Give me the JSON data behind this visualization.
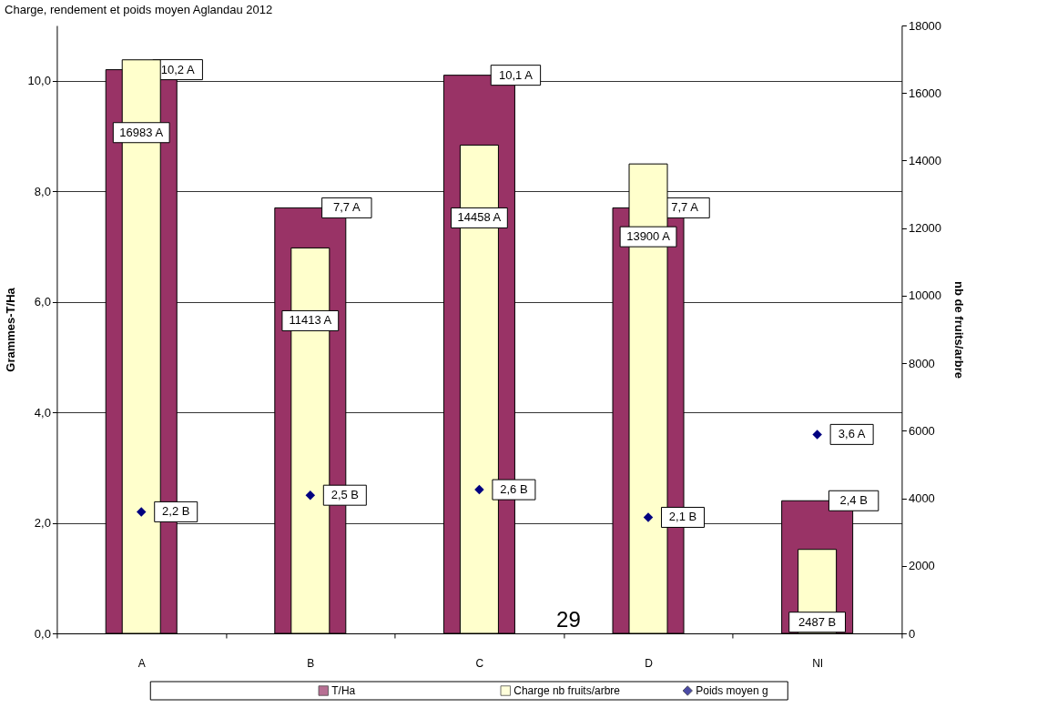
{
  "chart_data": {
    "type": "bar",
    "title": "Charge, rendement et poids moyen Aglandau 2012",
    "ylabel": "Grammes-T/Ha",
    "y2label": "nb de fruits/arbre",
    "categories": [
      "A",
      "B",
      "C",
      "D",
      "NI"
    ],
    "series": [
      {
        "name": "T/Ha",
        "color": "#993366",
        "values": [
          10.2,
          7.7,
          10.1,
          7.7,
          2.4
        ],
        "value_labels": [
          "10,2 A",
          "7,7 A",
          "10,1 A",
          "7,7 A",
          "2,4 B"
        ]
      },
      {
        "name": "Charge nb fruits/arbre",
        "axis": "y2",
        "color": "#ffffcc",
        "values": [
          16983,
          11413,
          14458,
          13900,
          2487
        ],
        "value_labels": [
          "16983 A",
          "11413 A",
          "14458 A",
          "13900 A",
          "2487 B"
        ]
      },
      {
        "name": "Poids moyen g",
        "type": "scatter",
        "color": "#000080",
        "values": [
          2.2,
          2.5,
          2.6,
          2.1,
          3.6
        ],
        "value_labels": [
          "2,2 B",
          "2,5 B",
          "2,6 B",
          "2,1 B",
          "3,6 A"
        ]
      }
    ],
    "ylim": [
      0,
      11
    ],
    "yticks": [
      {
        "value": 0,
        "label": "0,0"
      },
      {
        "value": 2,
        "label": "2,0"
      },
      {
        "value": 4,
        "label": "4,0"
      },
      {
        "value": 6,
        "label": "6,0"
      },
      {
        "value": 8,
        "label": "8,0"
      },
      {
        "value": 10,
        "label": "10,0"
      }
    ],
    "y2lim": [
      0,
      18000
    ],
    "y2ticks": [
      0,
      2000,
      4000,
      6000,
      8000,
      10000,
      12000,
      14000,
      16000,
      18000
    ],
    "grid": "y",
    "legend": "bottom",
    "marker": "diamond",
    "annotations": [
      "29"
    ]
  }
}
